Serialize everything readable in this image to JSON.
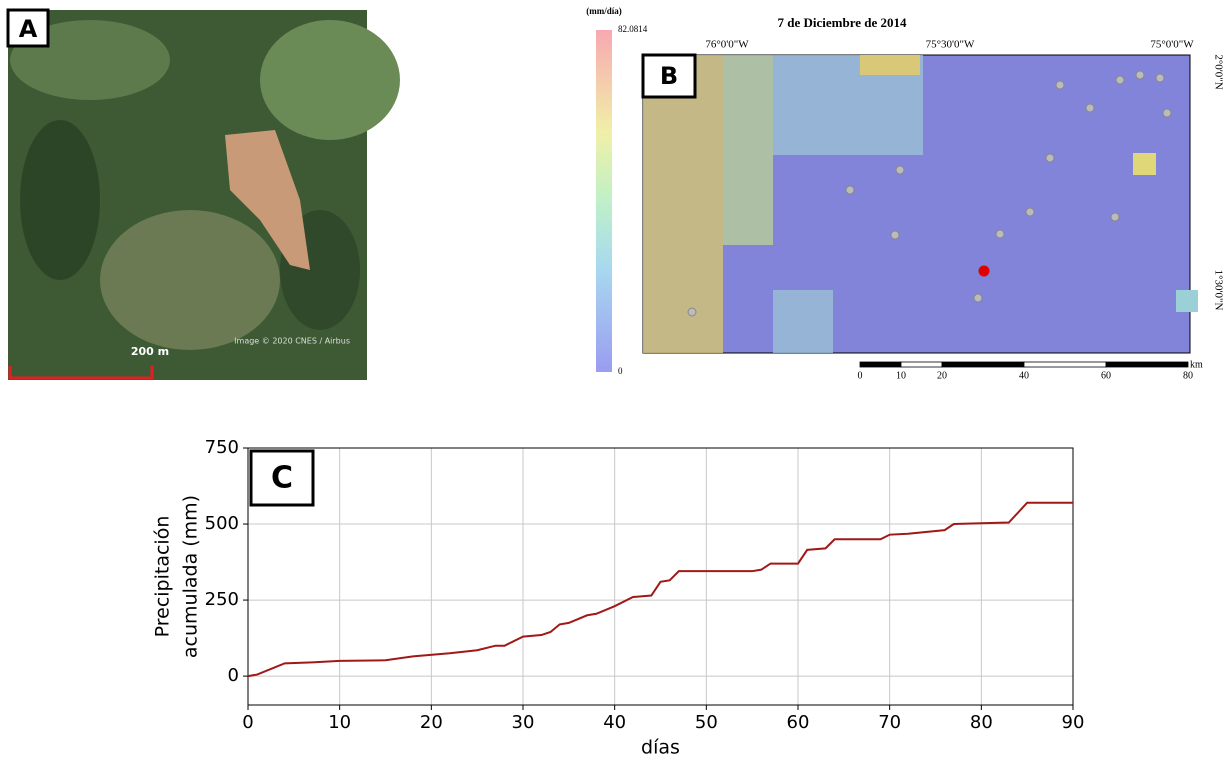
{
  "panel_a": {
    "label": "A",
    "scale": "200 m",
    "credit": "Image © 2020 CNES / Airbus"
  },
  "panel_b": {
    "label": "B",
    "title": "7 de Diciembre de 2014",
    "colorbar_unit": "(mm/día)",
    "colorbar_range": [
      0,
      82.0814
    ],
    "lon_labels": [
      "76°0'0\"W",
      "75°30'0\"W",
      "75°0'0\"W"
    ],
    "lat_labels": [
      "2°0'0\"N",
      "1°30'0\"N"
    ],
    "scale_ticks": [
      0,
      10,
      20,
      40,
      60,
      80
    ],
    "scale_unit": "km"
  },
  "chart_data": {
    "type": "line",
    "label": "C",
    "ylabel": [
      "Precipitación",
      "acumulada (mm)"
    ],
    "xlabel": "días",
    "x": [
      0,
      1,
      4,
      7,
      10,
      15,
      18,
      22,
      25,
      27,
      28,
      30,
      32,
      33,
      34,
      35,
      37,
      38,
      40,
      42,
      44,
      45,
      46,
      47,
      55,
      56,
      57,
      60,
      61,
      63,
      64,
      69,
      70,
      72,
      76,
      77,
      83,
      85,
      90
    ],
    "values": [
      0,
      5,
      42,
      45,
      50,
      52,
      65,
      75,
      85,
      100,
      100,
      130,
      135,
      145,
      170,
      175,
      200,
      205,
      230,
      260,
      265,
      310,
      315,
      345,
      345,
      350,
      370,
      370,
      415,
      420,
      450,
      450,
      465,
      468,
      480,
      500,
      505,
      570,
      570
    ],
    "color": "#a01818",
    "xlim": [
      0,
      90
    ],
    "xticks": [
      0,
      10,
      20,
      30,
      40,
      50,
      60,
      70,
      80,
      90
    ],
    "ylim": [
      -95,
      750
    ],
    "yticks": [
      0,
      250,
      500,
      750
    ],
    "grid": true
  }
}
